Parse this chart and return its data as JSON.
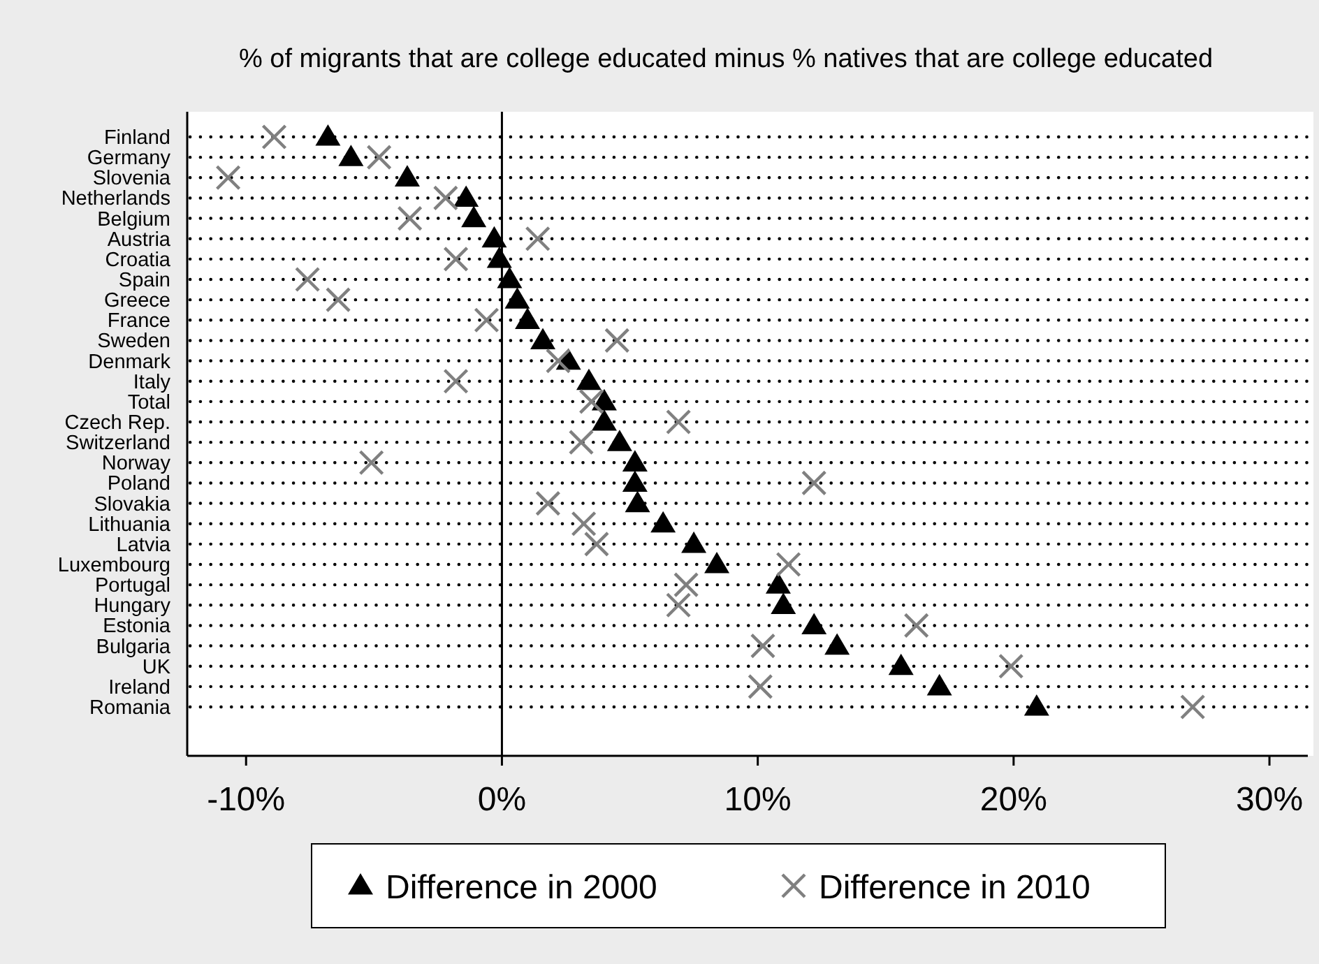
{
  "chart_data": {
    "type": "scatter",
    "orientation": "horizontal",
    "title": "% of migrants that are college educated minus % natives that are college educated",
    "categories": [
      "Finland",
      "Germany",
      "Slovenia",
      "Netherlands",
      "Belgium",
      "Austria",
      "Croatia",
      "Spain",
      "Greece",
      "France",
      "Sweden",
      "Denmark",
      "Italy",
      "Total",
      "Czech Rep.",
      "Switzerland",
      "Norway",
      "Poland",
      "Slovakia",
      "Lithuania",
      "Latvia",
      "Luxembourg",
      "Portugal",
      "Hungary",
      "Estonia",
      "Bulgaria",
      "UK",
      "Ireland",
      "Romania"
    ],
    "series": [
      {
        "name": "Difference in 2000",
        "color": "#000000",
        "marker": "triangle",
        "values": [
          -6.8,
          -5.9,
          -3.7,
          -1.4,
          -1.1,
          -0.3,
          -0.1,
          0.3,
          0.6,
          1.0,
          1.6,
          2.6,
          3.4,
          4.0,
          4.0,
          4.6,
          5.2,
          5.2,
          5.3,
          6.3,
          7.5,
          8.4,
          10.8,
          11.0,
          12.2,
          13.1,
          15.6,
          17.1,
          20.9
        ]
      },
      {
        "name": "Difference in 2010",
        "color": "#808080",
        "marker": "cross",
        "values": [
          -8.9,
          -4.8,
          -10.7,
          -2.2,
          -3.6,
          1.4,
          -1.8,
          -7.6,
          -6.4,
          -0.6,
          4.5,
          2.2,
          -1.8,
          3.5,
          6.9,
          3.1,
          -5.1,
          12.2,
          1.8,
          3.2,
          3.7,
          11.2,
          7.2,
          6.9,
          16.2,
          10.2,
          19.9,
          10.1,
          27.0
        ]
      }
    ],
    "xlim": [
      -12.3,
      31.5
    ],
    "xticks": [
      {
        "value": -10,
        "label": "-10%"
      },
      {
        "value": 0,
        "label": "0%"
      },
      {
        "value": 10,
        "label": "10%"
      },
      {
        "value": 20,
        "label": "20%"
      },
      {
        "value": 30,
        "label": "30%"
      }
    ],
    "ref_lines": [
      {
        "axis": "x",
        "value": 0,
        "color": "#000000"
      }
    ],
    "grid": "y",
    "legend": "bottom"
  }
}
